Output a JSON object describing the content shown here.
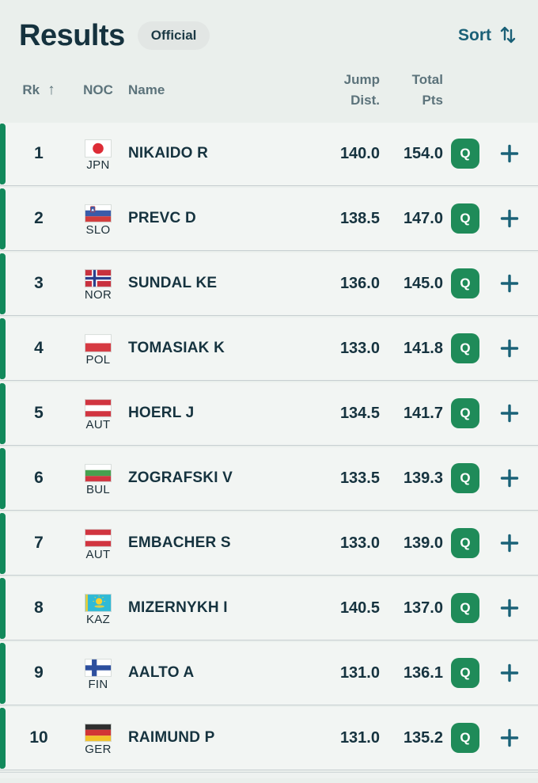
{
  "page": {
    "title": "Results",
    "status_badge": "Official",
    "sort_label": "Sort"
  },
  "table": {
    "header": {
      "rank": "Rk",
      "rank_sort_arrow": "↑",
      "noc": "NOC",
      "name": "Name",
      "jump_line1": "Jump",
      "jump_line2": "Dist.",
      "total_line1": "Total",
      "total_line2": "Pts"
    },
    "rows": [
      {
        "rank": "1",
        "noc": "JPN",
        "flag_icon": "flag-jpn-icon",
        "name": "NIKAIDO R",
        "jump_dist": "140.0",
        "total_pts": "154.0",
        "q": "Q"
      },
      {
        "rank": "2",
        "noc": "SLO",
        "flag_icon": "flag-slo-icon",
        "name": "PREVC D",
        "jump_dist": "138.5",
        "total_pts": "147.0",
        "q": "Q"
      },
      {
        "rank": "3",
        "noc": "NOR",
        "flag_icon": "flag-nor-icon",
        "name": "SUNDAL KE",
        "jump_dist": "136.0",
        "total_pts": "145.0",
        "q": "Q"
      },
      {
        "rank": "4",
        "noc": "POL",
        "flag_icon": "flag-pol-icon",
        "name": "TOMASIAK K",
        "jump_dist": "133.0",
        "total_pts": "141.8",
        "q": "Q"
      },
      {
        "rank": "5",
        "noc": "AUT",
        "flag_icon": "flag-aut-icon",
        "name": "HOERL J",
        "jump_dist": "134.5",
        "total_pts": "141.7",
        "q": "Q"
      },
      {
        "rank": "6",
        "noc": "BUL",
        "flag_icon": "flag-bul-icon",
        "name": "ZOGRAFSKI V",
        "jump_dist": "133.5",
        "total_pts": "139.3",
        "q": "Q"
      },
      {
        "rank": "7",
        "noc": "AUT",
        "flag_icon": "flag-aut-icon",
        "name": "EMBACHER S",
        "jump_dist": "133.0",
        "total_pts": "139.0",
        "q": "Q"
      },
      {
        "rank": "8",
        "noc": "KAZ",
        "flag_icon": "flag-kaz-icon",
        "name": "MIZERNYKH I",
        "jump_dist": "140.5",
        "total_pts": "137.0",
        "q": "Q"
      },
      {
        "rank": "9",
        "noc": "FIN",
        "flag_icon": "flag-fin-icon",
        "name": "AALTO A",
        "jump_dist": "131.0",
        "total_pts": "136.1",
        "q": "Q"
      },
      {
        "rank": "10",
        "noc": "GER",
        "flag_icon": "flag-ger-icon",
        "name": "RAIMUND P",
        "jump_dist": "131.0",
        "total_pts": "135.2",
        "q": "Q"
      }
    ]
  },
  "colors": {
    "page_bg": "#eaefec",
    "row_bg": "#f2f5f3",
    "accent_green": "#12895b",
    "q_badge_green": "#1f8b59",
    "interactive_teal": "#1a6077",
    "text_dark": "#16333f",
    "header_gray": "#5c737b"
  }
}
